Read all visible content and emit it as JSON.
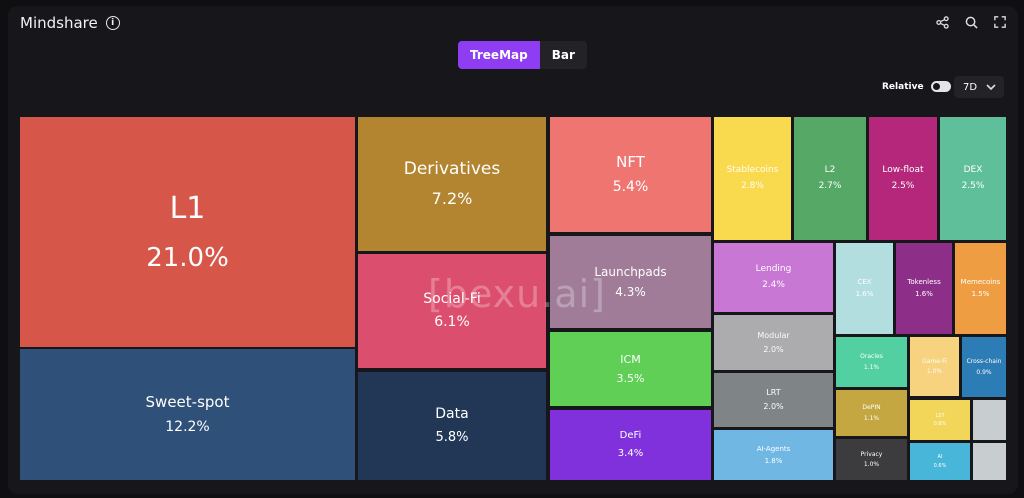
{
  "header": {
    "title": "Mindshare",
    "info_icon": "info-icon",
    "tools": [
      "share-icon",
      "search-icon",
      "fullscreen-icon"
    ]
  },
  "view_toggle": {
    "treemap_label": "TreeMap",
    "bar_label": "Bar",
    "active": "TreeMap"
  },
  "controls": {
    "relative_label": "Relative",
    "relative_on": true,
    "period": "7D"
  },
  "watermark": "[bexu.ai]",
  "chart_data": {
    "type": "treemap",
    "title": "",
    "items": [
      {
        "label": "L1",
        "value": "21.0%",
        "color": "#d6574a"
      },
      {
        "label": "Sweet-spot",
        "value": "12.2%",
        "color": "#2f5078"
      },
      {
        "label": "Derivatives",
        "value": "7.2%",
        "color": "#b38530"
      },
      {
        "label": "Social-Fi",
        "value": "6.1%",
        "color": "#dc4e6d"
      },
      {
        "label": "Data",
        "value": "5.8%",
        "color": "#223756"
      },
      {
        "label": "NFT",
        "value": "5.4%",
        "color": "#ef7571"
      },
      {
        "label": "Launchpads",
        "value": "4.3%",
        "color": "#a07c98"
      },
      {
        "label": "ICM",
        "value": "3.5%",
        "color": "#5fcf56"
      },
      {
        "label": "DeFi",
        "value": "3.4%",
        "color": "#8131db"
      },
      {
        "label": "Stablecoins",
        "value": "2.8%",
        "color": "#f9da4e"
      },
      {
        "label": "L2",
        "value": "2.7%",
        "color": "#55a865"
      },
      {
        "label": "Low-float",
        "value": "2.5%",
        "color": "#b4277a"
      },
      {
        "label": "DEX",
        "value": "2.5%",
        "color": "#5fbf9b"
      },
      {
        "label": "Lending",
        "value": "2.4%",
        "color": "#c977d4"
      },
      {
        "label": "CEX",
        "value": "1.6%",
        "color": "#b2dee0"
      },
      {
        "label": "Tokenless",
        "value": "1.6%",
        "color": "#8d2e89"
      },
      {
        "label": "Memecoins",
        "value": "1.5%",
        "color": "#ee9d42"
      },
      {
        "label": "Modular",
        "value": "2.0%",
        "color": "#acacae"
      },
      {
        "label": "LRT",
        "value": "2.0%",
        "color": "#7f8486"
      },
      {
        "label": "AI-Agents",
        "value": "1.8%",
        "color": "#71b7e4"
      },
      {
        "label": "Oracles",
        "value": "1.1%",
        "color": "#53d0a2"
      },
      {
        "label": "Game-Fi",
        "value": "1.0%",
        "color": "#f7d27f"
      },
      {
        "label": "Cross-chain",
        "value": "0.9%",
        "color": "#2c7cb5"
      },
      {
        "label": "DePIN",
        "value": "1.1%",
        "color": "#c5a742"
      },
      {
        "label": "LST",
        "value": "0.8%",
        "color": "#f1d65a"
      },
      {
        "label": "Privacy",
        "value": "1.0%",
        "color": "#3c3c3e"
      },
      {
        "label": "AI",
        "value": "0.6%",
        "color": "#47b6d8"
      },
      {
        "label": "",
        "value": "",
        "color": "#c8cdd0"
      },
      {
        "label": "",
        "value": "",
        "color": "#c8cdd0"
      }
    ]
  }
}
